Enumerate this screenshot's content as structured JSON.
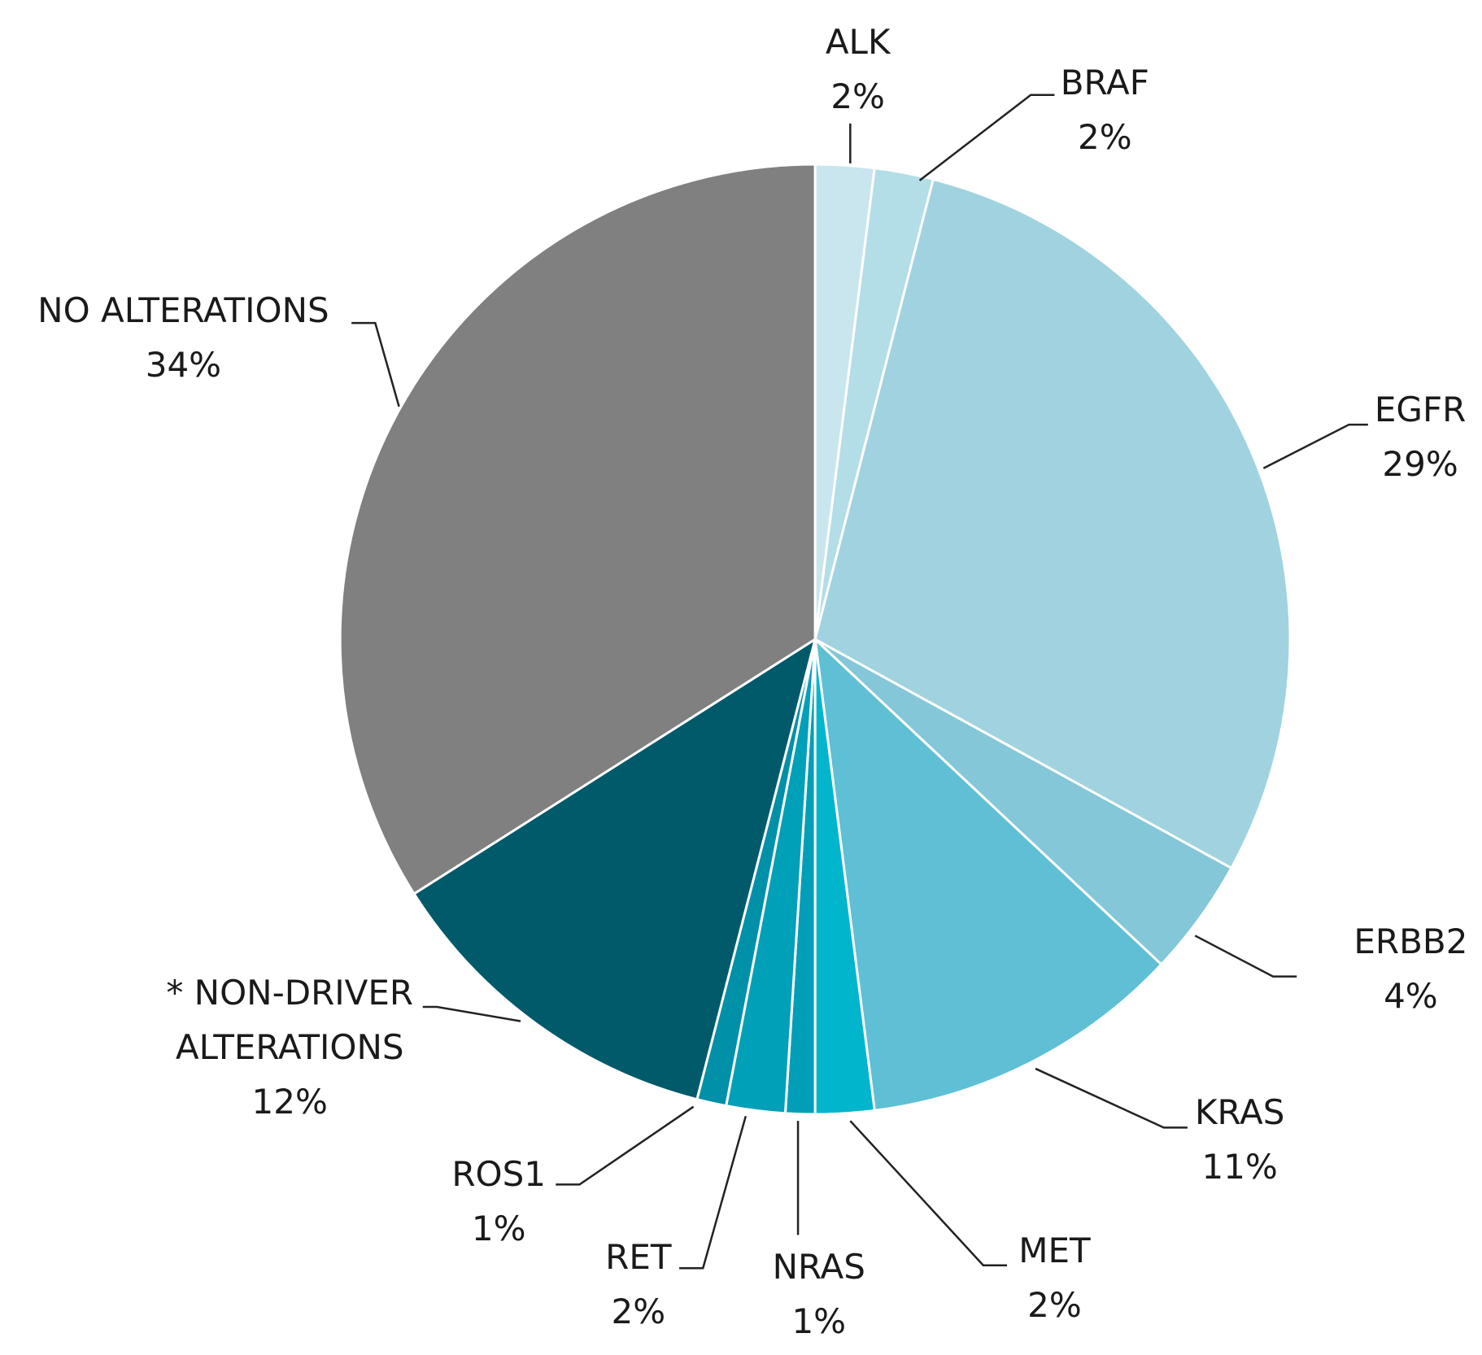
{
  "chart_data": {
    "type": "pie",
    "categories": [
      "ALK",
      "BRAF",
      "EGFR",
      "ERBB2",
      "KRAS",
      "MET",
      "NRAS",
      "RET",
      "ROS1",
      "* NON-DRIVER ALTERATIONS",
      "NO ALTERATIONS"
    ],
    "values": [
      2,
      2,
      29,
      4,
      11,
      2,
      1,
      2,
      1,
      12,
      34
    ],
    "value_labels": [
      "2%",
      "2%",
      "29%",
      "4%",
      "11%",
      "2%",
      "1%",
      "2%",
      "1%",
      "12%",
      "34%"
    ],
    "colors": [
      "#c9e6ee",
      "#b3dde7",
      "#a0d3df",
      "#83c7d8",
      "#5fbfd4",
      "#00b5cc",
      "#009fb7",
      "#00a0b8",
      "#0090a8",
      "#005a6a",
      "#808080"
    ]
  }
}
